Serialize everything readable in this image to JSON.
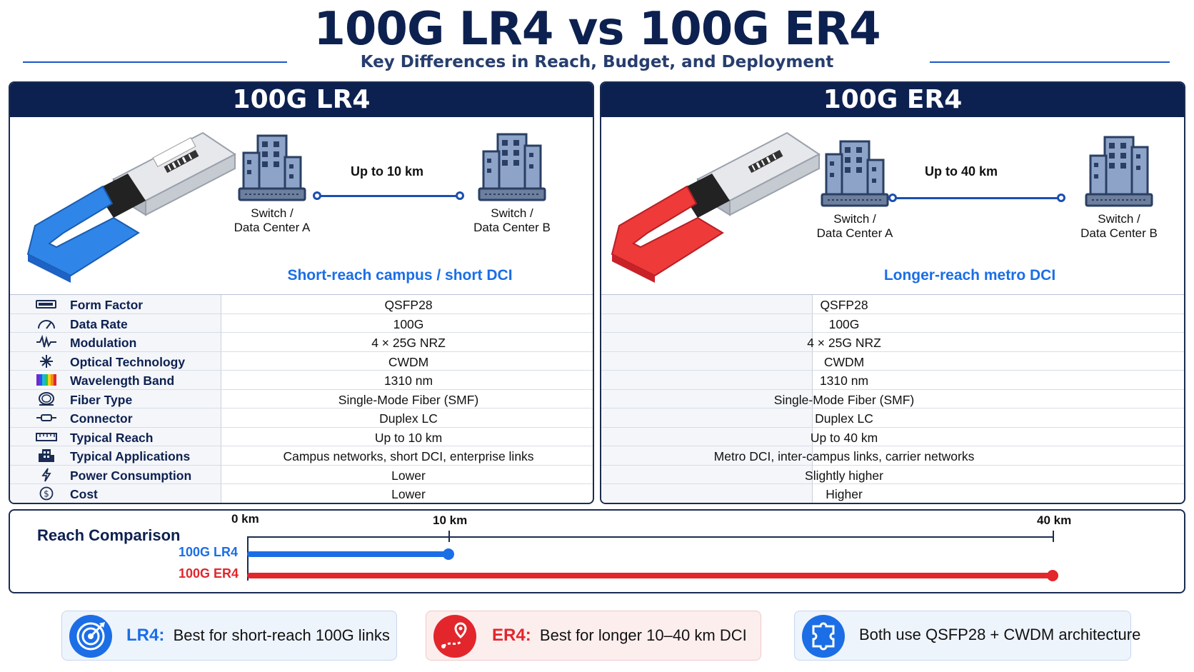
{
  "header": {
    "title": "100G LR4 vs 100G ER4",
    "subtitle": "Key Differences in Reach, Budget, and Deployment"
  },
  "colors": {
    "navy": "#0d2150",
    "lr4_blue": "#1b6ee6",
    "er4_red": "#e2262c"
  },
  "lr4": {
    "heading": "100G LR4",
    "site_a": "Switch /\nData Center A",
    "site_b": "Switch /\nData Center B",
    "link_label": "Up to 10 km",
    "caption": "Short-reach campus / short DCI",
    "values": [
      "QSFP28",
      "100G",
      "4 × 25G NRZ",
      "CWDM",
      "1310 nm",
      "Single-Mode Fiber (SMF)",
      "Duplex LC",
      "Up to 10 km",
      "Campus networks, short DCI, enterprise links",
      "Lower",
      "Lower"
    ]
  },
  "er4": {
    "heading": "100G ER4",
    "site_a": "Switch /\nData Center A",
    "site_b": "Switch /\nData Center B",
    "link_label": "Up to 40 km",
    "caption": "Longer-reach metro DCI",
    "values": [
      "QSFP28",
      "100G",
      "4 × 25G NRZ",
      "CWDM",
      "1310 nm",
      "Single-Mode Fiber (SMF)",
      "Duplex LC",
      "Up to 40 km",
      "Metro DCI, inter-campus links, carrier networks",
      "Slightly higher",
      "Higher"
    ]
  },
  "specs": [
    {
      "label": "Form Factor",
      "icon": "module-icon"
    },
    {
      "label": "Data Rate",
      "icon": "gauge-icon"
    },
    {
      "label": "Modulation",
      "icon": "waveform-icon"
    },
    {
      "label": "Optical Technology",
      "icon": "starburst-icon"
    },
    {
      "label": "Wavelength Band",
      "icon": "spectrum-icon"
    },
    {
      "label": "Fiber Type",
      "icon": "fiber-coil-icon"
    },
    {
      "label": "Connector",
      "icon": "connector-icon"
    },
    {
      "label": "Typical Reach",
      "icon": "ruler-icon"
    },
    {
      "label": "Typical Applications",
      "icon": "building-icon"
    },
    {
      "label": "Power Consumption",
      "icon": "lightning-icon"
    },
    {
      "label": "Cost",
      "icon": "dollar-icon"
    }
  ],
  "reach": {
    "title": "Reach Comparison",
    "ticks": [
      "0 km",
      "10 km",
      "40 km"
    ],
    "axis_km": [
      0,
      10,
      40
    ],
    "series": [
      {
        "name": "100G LR4",
        "km": 10,
        "color": "#1b6ee6"
      },
      {
        "name": "100G ER4",
        "km": 40,
        "color": "#e2262c"
      }
    ]
  },
  "cards": [
    {
      "key": "LR4:",
      "text": "Best for short-reach 100G links",
      "icon": "target-icon"
    },
    {
      "key": "ER4:",
      "text": "Best for longer 10–40 km DCI",
      "icon": "map-route-icon"
    },
    {
      "key": "",
      "text": "Both use QSFP28 + CWDM architecture",
      "icon": "puzzle-icon"
    }
  ]
}
